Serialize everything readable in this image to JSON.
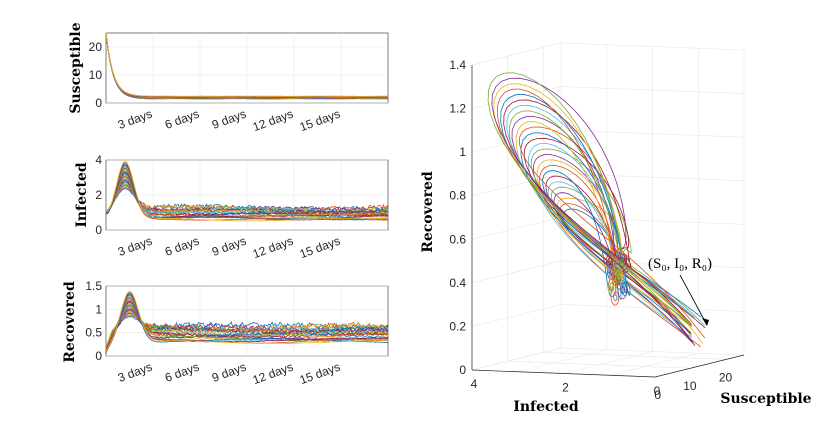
{
  "chart_data": [
    {
      "type": "line",
      "ylabel": "Susceptible",
      "xlabel": "",
      "ylim": [
        0,
        25
      ],
      "yticks": [
        "0",
        "10",
        "20"
      ],
      "xticks": [
        "3 days",
        "6 days",
        "9 days",
        "12 days",
        "15 days"
      ],
      "x_range_days": [
        0,
        18
      ],
      "grid": true,
      "series_summary": {
        "start": 25,
        "peak_day": 0,
        "steady_state": 2.0,
        "band_low": 1.5,
        "band_high": 2.4,
        "ensemble_count": 24
      }
    },
    {
      "type": "line",
      "ylabel": "Infected",
      "xlabel": "",
      "ylim": [
        0,
        4
      ],
      "yticks": [
        "0",
        "2",
        "4"
      ],
      "xticks": [
        "3 days",
        "6 days",
        "9 days",
        "12 days",
        "15 days"
      ],
      "x_range_days": [
        0,
        18
      ],
      "grid": true,
      "series_summary": {
        "start": 1.0,
        "peak_day": 1.2,
        "peak_low": 2.4,
        "peak_high": 4.0,
        "steady_low": 0.6,
        "steady_high": 1.4,
        "ensemble_count": 24
      }
    },
    {
      "type": "line",
      "ylabel": "Recovered",
      "xlabel": "",
      "ylim": [
        0,
        1.5
      ],
      "yticks": [
        "0",
        "0.5",
        "1",
        "1.5"
      ],
      "xticks": [
        "3 days",
        "6 days",
        "9 days",
        "12 days",
        "15 days"
      ],
      "x_range_days": [
        0,
        18
      ],
      "grid": true,
      "series_summary": {
        "start": 0.1,
        "peak_day": 1.5,
        "peak_low": 0.85,
        "peak_high": 1.4,
        "steady_low": 0.3,
        "steady_high": 0.7,
        "ensemble_count": 24
      }
    },
    {
      "type": "line",
      "projection": "3d",
      "xlabel": "Susceptible",
      "ylabel": "Infected",
      "zlabel": "Recovered",
      "xlim": [
        0,
        25
      ],
      "ylim": [
        0,
        4
      ],
      "zlim": [
        0,
        1.4
      ],
      "xticks": [
        "0",
        "10",
        "20"
      ],
      "yticks": [
        "0",
        "2",
        "4"
      ],
      "zticks": [
        "0",
        "0.2",
        "0.4",
        "0.6",
        "0.8",
        "1",
        "1.2",
        "1.4"
      ],
      "annotation": {
        "text": "(S₀, I₀, R₀)",
        "points_to": {
          "S": 25,
          "I": 1.0,
          "R": 0.1
        }
      },
      "grid": true
    }
  ],
  "colors": [
    "#0072BD",
    "#D95319",
    "#EDB120",
    "#7E2F8E",
    "#77AC30",
    "#4DBEEE",
    "#A2142F"
  ]
}
